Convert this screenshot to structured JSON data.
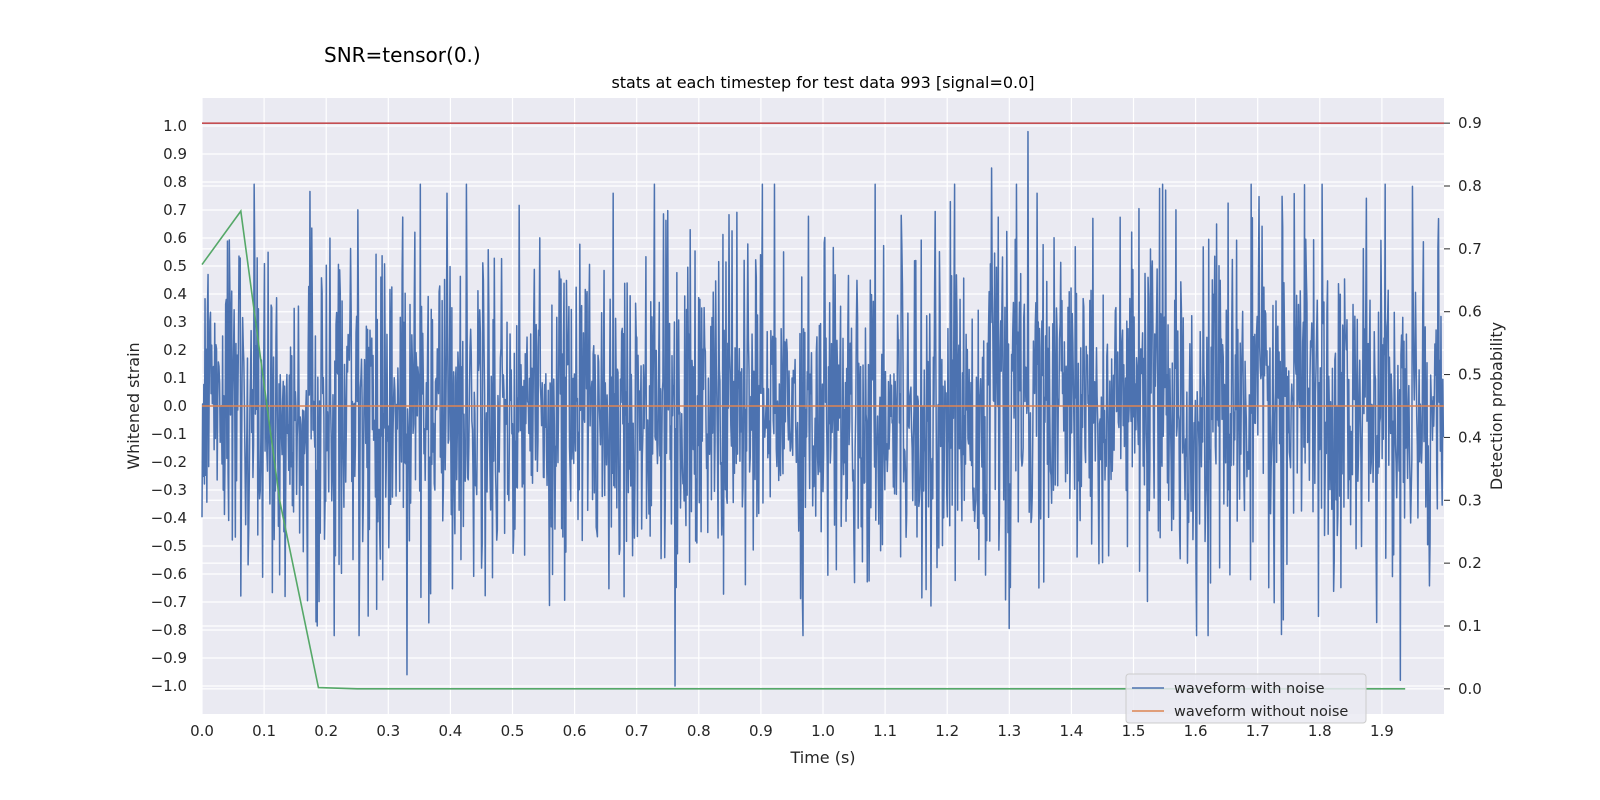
{
  "chart_data": {
    "type": "line",
    "suptitle": "SNR=tensor(0.)",
    "title": "stats at each timestep for test data 993 [signal=0.0]",
    "xlabel": "Time (s)",
    "ylabel": "Whitened strain",
    "y2label": "Detection probability",
    "xlim": [
      0.0,
      2.0
    ],
    "ylim": [
      -1.1,
      1.1
    ],
    "y2lim": [
      -0.04,
      0.94
    ],
    "xticks": [
      0.0,
      0.1,
      0.2,
      0.3,
      0.4,
      0.5,
      0.6,
      0.7,
      0.8,
      0.9,
      1.0,
      1.1,
      1.2,
      1.3,
      1.4,
      1.5,
      1.6,
      1.7,
      1.8,
      1.9
    ],
    "xtick_labels": [
      "0.0",
      "0.1",
      "0.2",
      "0.3",
      "0.4",
      "0.5",
      "0.6",
      "0.7",
      "0.8",
      "0.9",
      "1.0",
      "1.1",
      "1.2",
      "1.3",
      "1.4",
      "1.5",
      "1.6",
      "1.7",
      "1.8",
      "1.9"
    ],
    "yticks": [
      1.0,
      0.9,
      0.8,
      0.7,
      0.6,
      0.5,
      0.4,
      0.3,
      0.2,
      0.1,
      0.0,
      -0.1,
      -0.2,
      -0.3,
      -0.4,
      -0.5,
      -0.6,
      -0.7,
      -0.8,
      -0.9,
      -1.0
    ],
    "ytick_labels": [
      "1.0",
      "0.9",
      "0.8",
      "0.7",
      "0.6",
      "0.5",
      "0.4",
      "0.3",
      "0.2",
      "0.1",
      "0.0",
      "−0.1",
      "−0.2",
      "−0.3",
      "−0.4",
      "−0.5",
      "−0.6",
      "−0.7",
      "−0.8",
      "−0.9",
      "−1.0"
    ],
    "y2ticks": [
      0.9,
      0.8,
      0.7,
      0.6,
      0.5,
      0.4,
      0.3,
      0.2,
      0.1,
      0.0
    ],
    "y2tick_labels": [
      "0.9",
      "0.8",
      "0.7",
      "0.6",
      "0.5",
      "0.4",
      "0.3",
      "0.2",
      "0.1",
      "0.0"
    ],
    "grid": true,
    "legend_position": "lower-right",
    "series": [
      {
        "name": "waveform with noise",
        "axis": "left",
        "color": "#4c72b0",
        "n_points": 2048,
        "range_sample": [
          -1.0,
          0.99
        ],
        "peaks": [
          {
            "x": 0.762,
            "y": -1.0
          },
          {
            "x": 1.33,
            "y": 0.98
          },
          {
            "x": 1.271,
            "y": 0.85
          },
          {
            "x": 0.33,
            "y": -0.96
          },
          {
            "x": 1.775,
            "y": 0.79
          },
          {
            "x": 1.93,
            "y": -0.98
          },
          {
            "x": 0.395,
            "y": 0.76
          },
          {
            "x": 0.662,
            "y": 0.76
          }
        ]
      },
      {
        "name": "waveform without noise",
        "axis": "left",
        "color": "#dd8452",
        "x": [
          0.0,
          2.0
        ],
        "y": [
          0.0,
          0.0
        ]
      },
      {
        "name": "",
        "axis": "right",
        "color": "#55a868",
        "x": [
          0.0,
          0.0625,
          0.125,
          0.1875,
          0.25,
          0.3125,
          0.375,
          0.4375,
          0.5,
          0.5625,
          0.625,
          0.6875,
          0.75,
          0.8125,
          0.875,
          0.9375,
          1.0,
          1.0625,
          1.125,
          1.1875,
          1.25,
          1.3125,
          1.375,
          1.4375,
          1.5,
          1.5625,
          1.625,
          1.6875,
          1.75,
          1.8125,
          1.875,
          1.9375
        ],
        "y": [
          0.675,
          0.76,
          0.3,
          0.002,
          0.0,
          0.0,
          0.0,
          0.0,
          0.0,
          0.0,
          0.0,
          0.0,
          0.0,
          0.0,
          0.0,
          0.0,
          0.0,
          0.0,
          0.0,
          0.0,
          0.0,
          0.0,
          0.0,
          0.0,
          0.0,
          0.0,
          0.0,
          0.0,
          0.0,
          0.0,
          0.0,
          0.0
        ]
      },
      {
        "name": "",
        "axis": "right",
        "color": "#c44e52",
        "x": [
          0.0,
          2.0
        ],
        "y": [
          0.9,
          0.9
        ]
      }
    ]
  }
}
